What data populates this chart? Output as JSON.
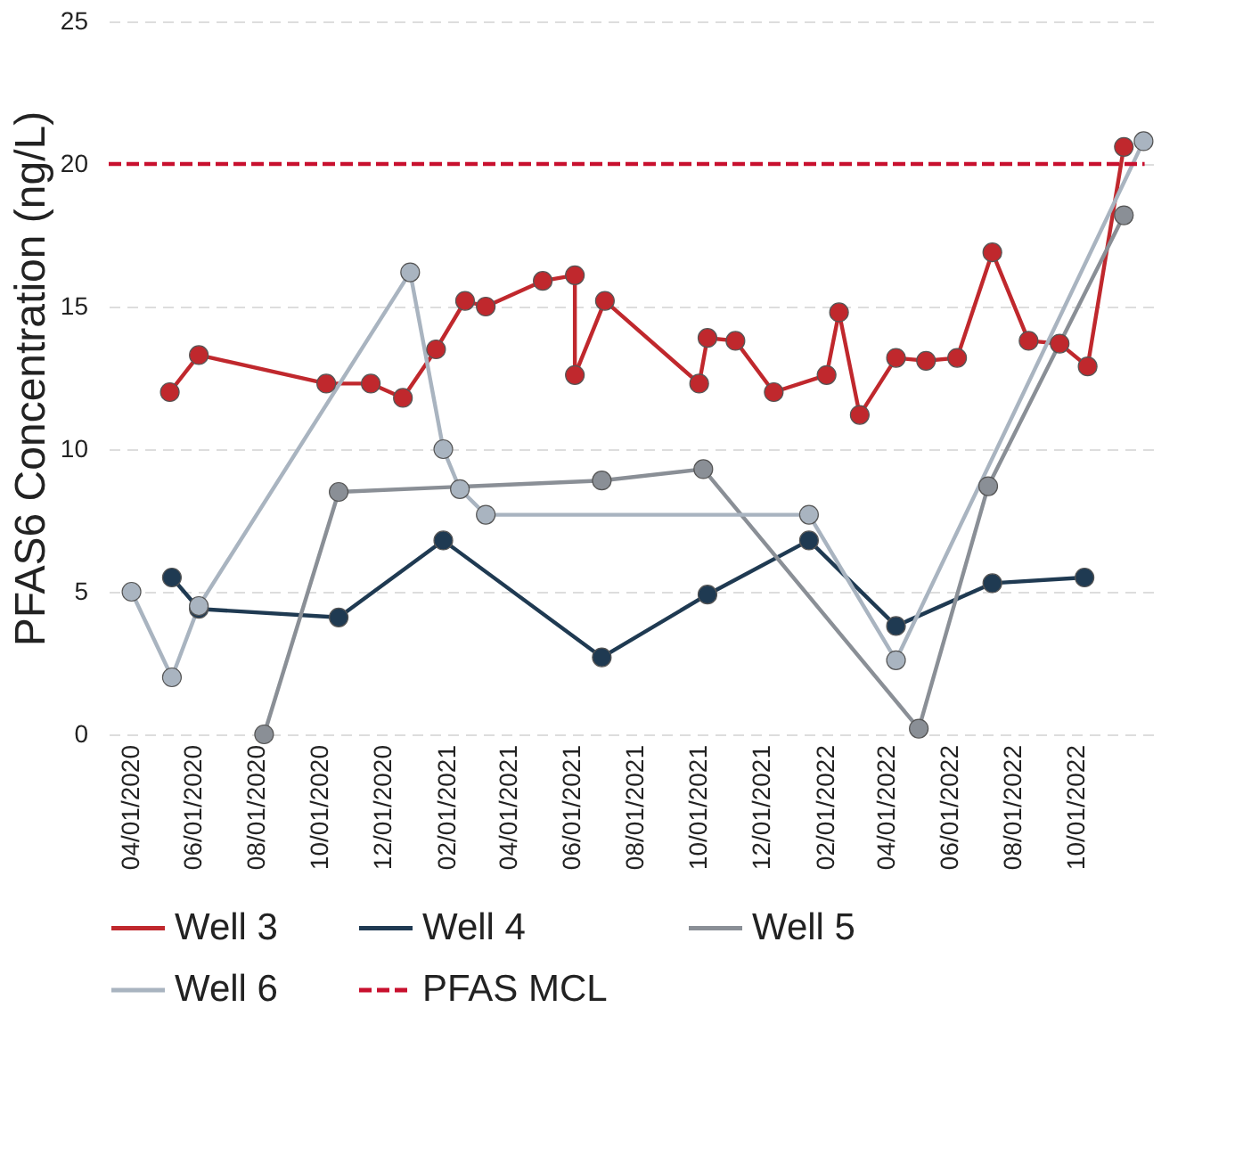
{
  "chart_data": {
    "type": "line",
    "ylabel": "PFAS6 Concentration (ng/L)",
    "xlim": [
      "2020-03-10",
      "2022-12-20"
    ],
    "ylim": [
      0,
      25
    ],
    "yticks": [
      0,
      5,
      10,
      15,
      20,
      25
    ],
    "xticks": [
      {
        "value": "2020-04-01",
        "label": "04/01/2020"
      },
      {
        "value": "2020-06-01",
        "label": "06/01/2020"
      },
      {
        "value": "2020-08-01",
        "label": "08/01/2020"
      },
      {
        "value": "2020-10-01",
        "label": "10/01/2020"
      },
      {
        "value": "2020-12-01",
        "label": "12/01/2020"
      },
      {
        "value": "2021-02-01",
        "label": "02/01/2021"
      },
      {
        "value": "2021-04-01",
        "label": "04/01/2021"
      },
      {
        "value": "2021-06-01",
        "label": "06/01/2021"
      },
      {
        "value": "2021-08-01",
        "label": "08/01/2021"
      },
      {
        "value": "2021-10-01",
        "label": "10/01/2021"
      },
      {
        "value": "2021-12-01",
        "label": "12/01/2021"
      },
      {
        "value": "2022-02-01",
        "label": "02/01/2022"
      },
      {
        "value": "2022-04-01",
        "label": "04/01/2022"
      },
      {
        "value": "2022-06-01",
        "label": "06/01/2022"
      },
      {
        "value": "2022-08-01",
        "label": "08/01/2022"
      },
      {
        "value": "2022-10-01",
        "label": "10/01/2022"
      }
    ],
    "grid": "y",
    "legend": "bottom",
    "marker": "circle",
    "line_style": "solid",
    "series": [
      {
        "name": "Well 3",
        "color": "#c0282d",
        "x": [
          "2020-05-08",
          "2020-06-05",
          "2020-10-06",
          "2020-11-18",
          "2020-12-19",
          "2021-01-20",
          "2021-02-17",
          "2021-03-09",
          "2021-05-03",
          "2021-06-03",
          "2021-06-03",
          "2021-07-02",
          "2021-10-01",
          "2021-10-09",
          "2021-11-05",
          "2021-12-12",
          "2022-02-01",
          "2022-02-13",
          "2022-03-05",
          "2022-04-09",
          "2022-05-08",
          "2022-06-07",
          "2022-07-11",
          "2022-08-15",
          "2022-09-14",
          "2022-10-11",
          "2022-11-15"
        ],
        "values": [
          12.0,
          13.3,
          12.3,
          12.3,
          11.8,
          13.5,
          15.2,
          15.0,
          15.9,
          16.1,
          12.6,
          15.2,
          12.3,
          13.9,
          13.8,
          12.0,
          12.6,
          14.8,
          11.2,
          13.2,
          13.1,
          13.2,
          16.9,
          13.8,
          13.7,
          12.9,
          20.6
        ]
      },
      {
        "name": "Well 4",
        "color": "#1f3a52",
        "x": [
          "2020-05-10",
          "2020-06-05",
          "2020-10-18",
          "2021-01-27",
          "2021-06-29",
          "2021-10-09",
          "2022-01-15",
          "2022-04-09",
          "2022-07-11",
          "2022-10-08"
        ],
        "values": [
          5.5,
          4.4,
          4.1,
          6.8,
          2.7,
          4.9,
          6.8,
          3.8,
          5.3,
          5.5
        ]
      },
      {
        "name": "Well 5",
        "color": "#8a8f96",
        "x": [
          "2020-08-07",
          "2020-10-18",
          "2021-06-29",
          "2021-10-05",
          "2022-05-01",
          "2022-07-07",
          "2022-11-15"
        ],
        "values": [
          0.0,
          8.5,
          8.9,
          9.3,
          0.2,
          8.7,
          18.2
        ]
      },
      {
        "name": "Well 6",
        "color": "#a9b4c0",
        "x": [
          "2020-04-01",
          "2020-05-10",
          "2020-06-05",
          "2020-12-26",
          "2021-01-27",
          "2021-02-12",
          "2021-03-09",
          "2022-01-15",
          "2022-04-09",
          "2022-12-04"
        ],
        "values": [
          5.0,
          2.0,
          4.5,
          16.2,
          10.0,
          8.6,
          7.7,
          7.7,
          2.6,
          20.8
        ]
      },
      {
        "name": "PFAS MCL",
        "color": "#c8102e",
        "marker": "none",
        "line_style": "dashed",
        "x": [
          "2020-03-10",
          "2022-12-05"
        ],
        "values": [
          20,
          20
        ]
      }
    ]
  }
}
